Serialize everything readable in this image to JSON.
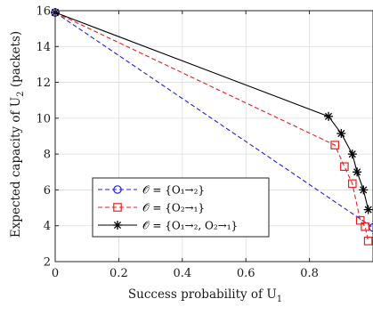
{
  "chart_data": {
    "type": "line",
    "xlabel": "Success probability of U",
    "xlabel_sub": "1",
    "ylabel": "Expected capacity of U",
    "ylabel_sub": "2",
    "ylabel_unit": " (packets)",
    "xlim": [
      0,
      1
    ],
    "ylim": [
      2,
      16
    ],
    "x_ticks": [
      0,
      0.2,
      0.4,
      0.6,
      0.8
    ],
    "x_tick_labels": [
      "0",
      "0.2",
      "0.4",
      "0.6",
      "0.8"
    ],
    "y_ticks": [
      2,
      4,
      6,
      8,
      10,
      12,
      14,
      16
    ],
    "y_tick_labels": [
      "2",
      "4",
      "6",
      "8",
      "10",
      "12",
      "14",
      "16"
    ],
    "grid": true,
    "legend_position": "lower-left",
    "series": [
      {
        "name": "𝒪 = {O1→2}",
        "legend_label": "𝒪 = {O₁→₂}",
        "color": "#1f1fe6",
        "dash": "dashed",
        "marker": "circle",
        "x": [
          0,
          1.0
        ],
        "y": [
          15.9,
          3.9
        ],
        "marker_indices": [
          0,
          1
        ]
      },
      {
        "name": "𝒪 = {O2→1}",
        "legend_label": "𝒪 = {O₂→₁}",
        "color": "#e62020",
        "dash": "dashed",
        "marker": "square",
        "x": [
          0,
          0.88,
          0.91,
          0.935,
          0.96,
          0.975,
          0.985
        ],
        "y": [
          15.9,
          8.5,
          7.3,
          6.35,
          4.3,
          3.95,
          3.15
        ],
        "marker_indices": [
          1,
          2,
          3,
          4,
          5,
          6
        ]
      },
      {
        "name": "𝒪 = {O1→2, O2→1}",
        "legend_label": "𝒪 = {O₁→₂, O₂→₁}",
        "color": "#000000",
        "dash": "solid",
        "marker": "asterisk",
        "x": [
          0,
          0.86,
          0.9,
          0.935,
          0.95,
          0.97,
          0.985
        ],
        "y": [
          15.9,
          10.1,
          9.15,
          8.0,
          7.0,
          6.0,
          4.9
        ],
        "marker_indices": [
          0,
          1,
          2,
          3,
          4,
          5,
          6
        ]
      }
    ]
  }
}
